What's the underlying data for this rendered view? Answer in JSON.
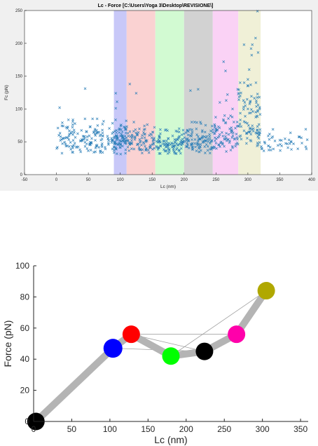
{
  "chart_data": [
    {
      "type": "scatter",
      "title": "Lc - Force [C:\\Users\\Yoga 3\\Desktop\\REVISIONE\\]",
      "xlabel": "Lc (nm)",
      "ylabel": "Fc (pN)",
      "xlim": [
        -50,
        400
      ],
      "ylim": [
        0,
        250
      ],
      "xticks": [
        -50,
        0,
        50,
        100,
        150,
        200,
        250,
        300,
        350,
        400
      ],
      "yticks": [
        0,
        50,
        100,
        150,
        200,
        250
      ],
      "grid": false,
      "marker": "x",
      "marker_color": "#2c7fb8",
      "bands": [
        {
          "x0": 90,
          "x1": 110,
          "color": "#c8c8f8"
        },
        {
          "x0": 110,
          "x1": 155,
          "color": "#fad2d2"
        },
        {
          "x0": 155,
          "x1": 200,
          "color": "#d2fad2"
        },
        {
          "x0": 200,
          "x1": 245,
          "color": "#d2d2d2"
        },
        {
          "x0": 245,
          "x1": 285,
          "color": "#fad2f5"
        },
        {
          "x0": 285,
          "x1": 320,
          "color": "#f0f0d7"
        }
      ],
      "clusters": [
        {
          "x0": 0,
          "x1": 90,
          "n": 150,
          "ymin": 30,
          "ymax": 85
        },
        {
          "x0": 90,
          "x1": 110,
          "n": 80,
          "ymin": 30,
          "ymax": 85
        },
        {
          "x0": 110,
          "x1": 155,
          "n": 90,
          "ymin": 32,
          "ymax": 80
        },
        {
          "x0": 155,
          "x1": 200,
          "n": 100,
          "ymin": 30,
          "ymax": 70
        },
        {
          "x0": 200,
          "x1": 245,
          "n": 100,
          "ymin": 30,
          "ymax": 80
        },
        {
          "x0": 245,
          "x1": 285,
          "n": 80,
          "ymin": 32,
          "ymax": 90
        },
        {
          "x0": 285,
          "x1": 320,
          "n": 90,
          "ymin": 30,
          "ymax": 140
        },
        {
          "x0": 320,
          "x1": 395,
          "n": 45,
          "ymin": 30,
          "ymax": 70
        }
      ],
      "outliers": [
        {
          "x": 5,
          "y": 102
        },
        {
          "x": 45,
          "y": 131
        },
        {
          "x": 93,
          "y": 124
        },
        {
          "x": 93,
          "y": 101
        },
        {
          "x": 95,
          "y": 111
        },
        {
          "x": 115,
          "y": 138
        },
        {
          "x": 125,
          "y": 124
        },
        {
          "x": 210,
          "y": 128
        },
        {
          "x": 222,
          "y": 130
        },
        {
          "x": 256,
          "y": 110
        },
        {
          "x": 262,
          "y": 172
        },
        {
          "x": 265,
          "y": 158
        },
        {
          "x": 266,
          "y": 113
        },
        {
          "x": 284,
          "y": 130
        },
        {
          "x": 285,
          "y": 123
        },
        {
          "x": 288,
          "y": 120
        },
        {
          "x": 294,
          "y": 198
        },
        {
          "x": 300,
          "y": 145
        },
        {
          "x": 302,
          "y": 160
        },
        {
          "x": 305,
          "y": 192
        },
        {
          "x": 306,
          "y": 182
        },
        {
          "x": 307,
          "y": 198
        },
        {
          "x": 312,
          "y": 208
        },
        {
          "x": 316,
          "y": 186
        },
        {
          "x": 315,
          "y": 249
        },
        {
          "x": 318,
          "y": 118
        },
        {
          "x": 300,
          "y": 135
        },
        {
          "x": 296,
          "y": 105
        },
        {
          "x": 304,
          "y": 112
        },
        {
          "x": 276,
          "y": 100
        },
        {
          "x": 268,
          "y": 122
        },
        {
          "x": 300,
          "y": 100
        }
      ]
    },
    {
      "type": "line",
      "xlabel": "Lc (nm)",
      "ylabel": "Force (pN)",
      "xlim": [
        0,
        360
      ],
      "ylim": [
        0,
        100
      ],
      "xticks": [
        0,
        50,
        100,
        150,
        200,
        250,
        300,
        350
      ],
      "yticks": [
        0,
        20,
        40,
        60,
        80,
        100
      ],
      "grid": false,
      "path": [
        0,
        1,
        2,
        3,
        4,
        5,
        6
      ],
      "points": [
        {
          "x": 3,
          "y": 0,
          "color": "#000000"
        },
        {
          "x": 104,
          "y": 47,
          "color": "#0000ff"
        },
        {
          "x": 128,
          "y": 56,
          "color": "#ff0000"
        },
        {
          "x": 180,
          "y": 42,
          "color": "#00ff00"
        },
        {
          "x": 224,
          "y": 45,
          "color": "#000000"
        },
        {
          "x": 266,
          "y": 56,
          "color": "#ff00aa"
        },
        {
          "x": 305,
          "y": 84,
          "color": "#b0a800"
        }
      ],
      "connections": [
        [
          1,
          4
        ],
        [
          2,
          5
        ],
        [
          2,
          4
        ],
        [
          3,
          6
        ]
      ],
      "path_color": "#b4b4b4",
      "connection_color": "#a0a0a0"
    }
  ]
}
